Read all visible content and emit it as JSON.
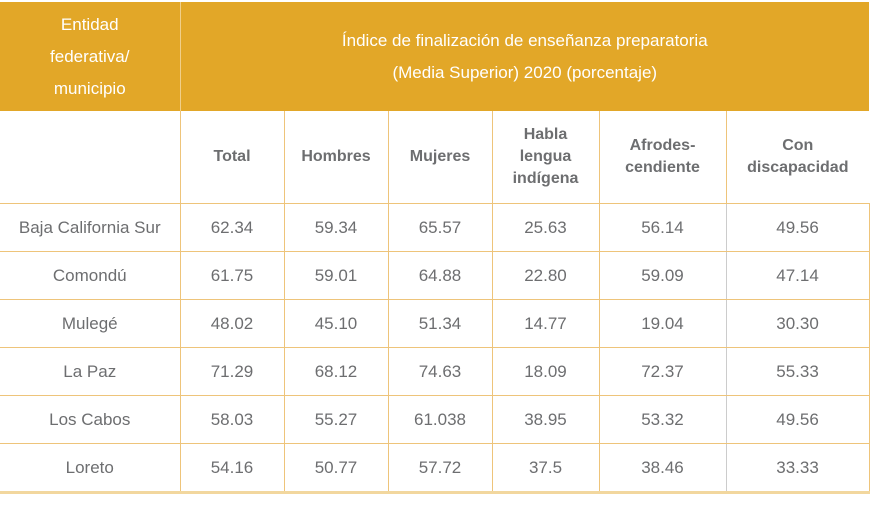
{
  "header": {
    "entity_label": "Entidad federativa/ municipio",
    "entity_lines": [
      "Entidad",
      "federativa/",
      "municipio"
    ],
    "title_lines": [
      "Índice de finalización de enseñanza preparatoria",
      "(Media Superior) 2020 (porcentaje)"
    ],
    "columns": [
      {
        "lines": [
          "Total"
        ]
      },
      {
        "lines": [
          "Hombres"
        ]
      },
      {
        "lines": [
          "Mujeres"
        ]
      },
      {
        "lines": [
          "Habla",
          "lengua",
          "indígena"
        ]
      },
      {
        "lines": [
          "Afrodes-",
          "cendiente"
        ]
      },
      {
        "lines": [
          "Con",
          "discapacidad"
        ]
      }
    ]
  },
  "rows": [
    {
      "name": "Baja California Sur",
      "values": [
        "62.34",
        "59.34",
        "65.57",
        "25.63",
        "56.14",
        "49.56"
      ]
    },
    {
      "name": "Comondú",
      "values": [
        "61.75",
        "59.01",
        "64.88",
        "22.80",
        "59.09",
        "47.14"
      ]
    },
    {
      "name": "Mulegé",
      "values": [
        "48.02",
        "45.10",
        "51.34",
        "14.77",
        "19.04",
        "30.30"
      ]
    },
    {
      "name": "La Paz",
      "values": [
        "71.29",
        "68.12",
        "74.63",
        "18.09",
        "72.37",
        "55.33"
      ]
    },
    {
      "name": "Los Cabos",
      "values": [
        "58.03",
        "55.27",
        "61.038",
        "38.95",
        "53.32",
        "49.56"
      ]
    },
    {
      "name": "Loreto",
      "values": [
        "54.16",
        "50.77",
        "57.72",
        "37.5",
        "38.46",
        "33.33"
      ]
    }
  ],
  "colors": {
    "header_bg": "#e2a728",
    "border": "#eec47a",
    "text": "#6d6e70"
  }
}
